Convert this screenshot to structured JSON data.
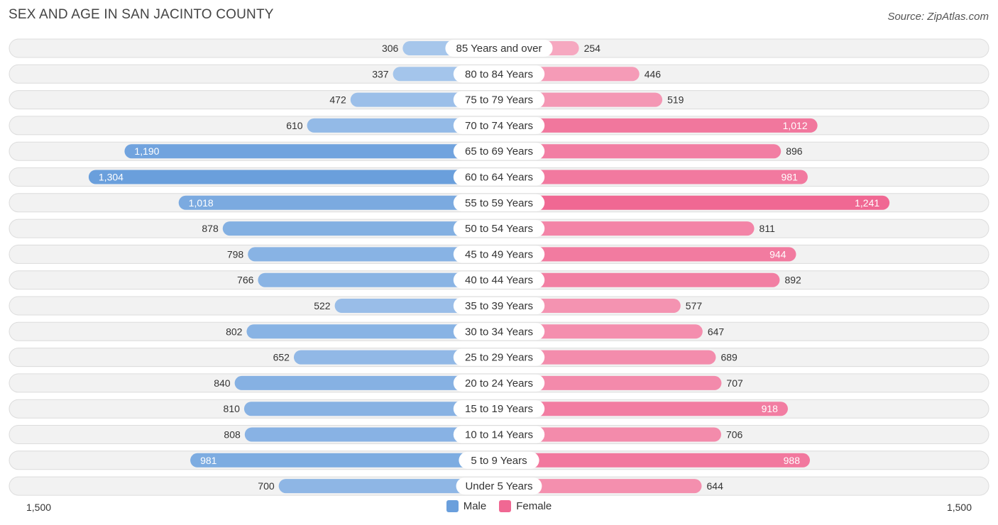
{
  "header": {
    "title": "SEX AND AGE IN SAN JACINTO COUNTY",
    "source": "Source: ZipAtlas.com"
  },
  "colors": {
    "male_strong": "#6a9fdc",
    "male_light": "#a9c8ec",
    "female_strong": "#f06893",
    "female_light": "#f6a8c0"
  },
  "chart_data": {
    "type": "bar",
    "orientation": "horizontal-diverging",
    "title": "SEX AND AGE IN SAN JACINTO COUNTY",
    "categories": [
      "85 Years and over",
      "80 to 84 Years",
      "75 to 79 Years",
      "70 to 74 Years",
      "65 to 69 Years",
      "60 to 64 Years",
      "55 to 59 Years",
      "50 to 54 Years",
      "45 to 49 Years",
      "40 to 44 Years",
      "35 to 39 Years",
      "30 to 34 Years",
      "25 to 29 Years",
      "20 to 24 Years",
      "15 to 19 Years",
      "10 to 14 Years",
      "5 to 9 Years",
      "Under 5 Years"
    ],
    "series": [
      {
        "name": "Male",
        "values": [
          306,
          337,
          472,
          610,
          1190,
          1304,
          1018,
          878,
          798,
          766,
          522,
          802,
          652,
          840,
          810,
          808,
          981,
          700
        ],
        "labels": [
          "306",
          "337",
          "472",
          "610",
          "1,190",
          "1,304",
          "1,018",
          "878",
          "798",
          "766",
          "522",
          "802",
          "652",
          "840",
          "810",
          "808",
          "981",
          "700"
        ]
      },
      {
        "name": "Female",
        "values": [
          254,
          446,
          519,
          1012,
          896,
          981,
          1241,
          811,
          944,
          892,
          577,
          647,
          689,
          707,
          918,
          706,
          988,
          644
        ],
        "labels": [
          "254",
          "446",
          "519",
          "1,012",
          "896",
          "981",
          "1,241",
          "811",
          "944",
          "892",
          "577",
          "647",
          "689",
          "707",
          "918",
          "706",
          "988",
          "644"
        ]
      }
    ],
    "xlim": [
      -1500,
      1500
    ],
    "axis_left_label": "1,500",
    "axis_right_label": "1,500",
    "legend": [
      "Male",
      "Female"
    ],
    "legend_position": "bottom-center"
  }
}
